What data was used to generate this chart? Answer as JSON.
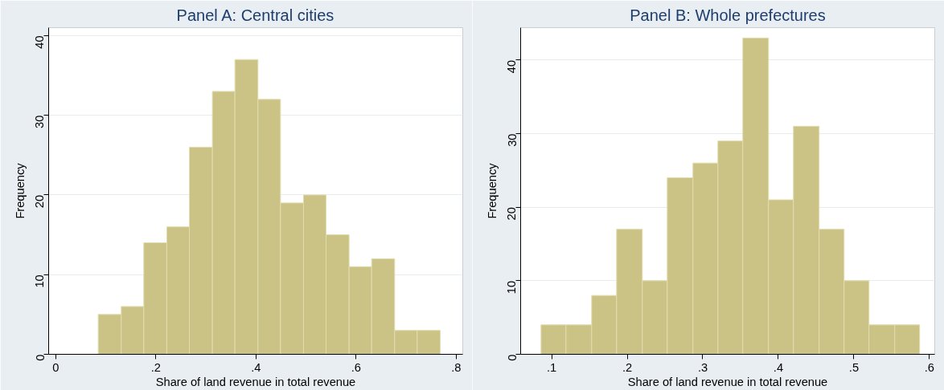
{
  "chart_data": [
    {
      "type": "histogram",
      "title": "Panel A: Central cities",
      "xlabel": "Share of land revenue in total revenue",
      "ylabel": "Frequency",
      "bins": [
        0.085,
        0.131,
        0.176,
        0.222,
        0.267,
        0.313,
        0.358,
        0.404,
        0.449,
        0.495,
        0.54,
        0.586,
        0.631,
        0.677,
        0.722,
        0.768
      ],
      "values": [
        5,
        6,
        14,
        16,
        26,
        33,
        37,
        32,
        19,
        20,
        15,
        11,
        12,
        3,
        3
      ],
      "color": "#cbc385",
      "xlim": [
        -0.014,
        0.813
      ],
      "ylim": [
        0,
        41
      ],
      "xticks": [
        0,
        {
          "value": 0.2,
          "label": ".2"
        },
        {
          "value": 0.4,
          "label": ".4"
        },
        {
          "value": 0.6,
          "label": ".6"
        },
        {
          "value": 0.8,
          "label": ".8"
        }
      ],
      "yticks": [
        0,
        10,
        20,
        30,
        40
      ],
      "grid": "y"
    },
    {
      "type": "histogram",
      "title": "Panel B: Whole prefectures",
      "xlabel": "Share of land revenue in total revenue",
      "ylabel": "Frequency",
      "bins": [
        0.086,
        0.119,
        0.153,
        0.186,
        0.22,
        0.253,
        0.287,
        0.32,
        0.353,
        0.387,
        0.42,
        0.454,
        0.487,
        0.52,
        0.554,
        0.587
      ],
      "values": [
        4,
        4,
        8,
        17,
        10,
        24,
        26,
        29,
        43,
        21,
        31,
        17,
        10,
        4,
        4
      ],
      "color": "#cbc385",
      "xlim": [
        0.059,
        0.607
      ],
      "ylim": [
        0,
        44.4
      ],
      "xticks": [
        {
          "value": 0.1,
          "label": ".1"
        },
        {
          "value": 0.2,
          "label": ".2"
        },
        {
          "value": 0.3,
          "label": ".3"
        },
        {
          "value": 0.4,
          "label": ".4"
        },
        {
          "value": 0.5,
          "label": ".5"
        },
        {
          "value": 0.6,
          "label": ".6"
        }
      ],
      "yticks": [
        0,
        10,
        20,
        30,
        40
      ],
      "grid": "y"
    }
  ]
}
